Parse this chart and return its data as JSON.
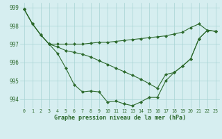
{
  "x": [
    0,
    1,
    2,
    3,
    4,
    5,
    6,
    7,
    8,
    9,
    10,
    11,
    12,
    13,
    14,
    15,
    16,
    17,
    18,
    19,
    20,
    21,
    22,
    23
  ],
  "line1": [
    998.9,
    998.1,
    997.5,
    997.0,
    996.5,
    995.7,
    994.8,
    994.4,
    994.45,
    994.4,
    993.85,
    993.9,
    993.75,
    993.65,
    993.85,
    994.1,
    994.1,
    995.0,
    995.45,
    995.8,
    996.2,
    997.3,
    997.75,
    997.7
  ],
  "line2": [
    998.9,
    998.1,
    997.5,
    997.0,
    997.0,
    997.0,
    997.0,
    997.0,
    997.05,
    997.1,
    997.1,
    997.15,
    997.2,
    997.25,
    997.3,
    997.35,
    997.4,
    997.45,
    997.55,
    997.65,
    997.9,
    998.1,
    997.75,
    997.7
  ],
  "line3": [
    998.9,
    998.1,
    997.5,
    997.0,
    996.85,
    996.65,
    996.55,
    996.45,
    996.3,
    996.1,
    995.9,
    995.7,
    995.5,
    995.3,
    995.1,
    994.85,
    994.6,
    995.35,
    995.45,
    995.8,
    996.2,
    997.3,
    997.75,
    997.7
  ],
  "xlim": [
    -0.5,
    23.5
  ],
  "ylim": [
    993.5,
    999.25
  ],
  "yticks": [
    994,
    995,
    996,
    997,
    998,
    999
  ],
  "xticks": [
    0,
    1,
    2,
    3,
    4,
    5,
    6,
    7,
    8,
    9,
    10,
    11,
    12,
    13,
    14,
    15,
    16,
    17,
    18,
    19,
    20,
    21,
    22,
    23
  ],
  "xlabel": "Graphe pression niveau de la mer (hPa)",
  "line_color": "#2d6a2d",
  "bg_color": "#d6eef0",
  "grid_color": "#a8d4d4",
  "marker": "D",
  "markersize": 2.0,
  "linewidth": 0.8
}
